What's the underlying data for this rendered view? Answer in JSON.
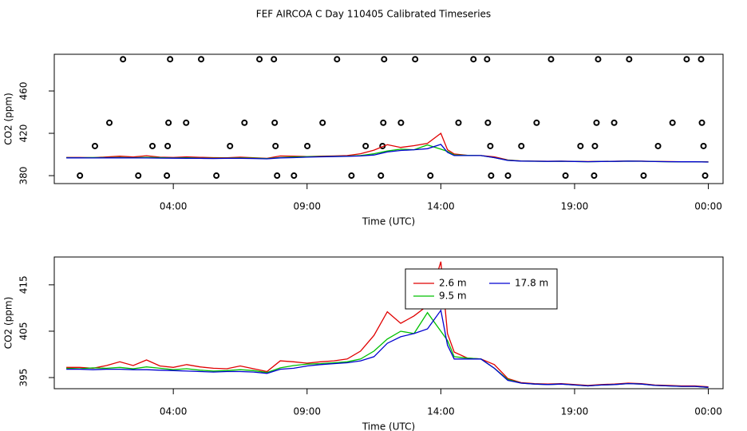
{
  "chart_data": [
    {
      "type": "line",
      "title": "FEF AIRCOA C  Day 110405  Calibrated Timeseries",
      "xlabel": "Time (UTC)",
      "ylabel": "CO2 (ppm)",
      "xlim": [
        -0.45,
        24.55
      ],
      "ylim": [
        372.5,
        494.7
      ],
      "xticks": [
        {
          "value": 4,
          "label": "04:00"
        },
        {
          "value": 9,
          "label": "09:00"
        },
        {
          "value": 14,
          "label": "14:00"
        },
        {
          "value": 19,
          "label": "19:00"
        },
        {
          "value": 24,
          "label": "00:00"
        }
      ],
      "yticks": [
        380,
        420,
        460
      ],
      "series": [
        {
          "color": "#000000",
          "mode": "points",
          "x": [
            2.12,
            3.88,
            5.04,
            7.22,
            7.76,
            10.12,
            11.88,
            13.04,
            15.22,
            15.73,
            18.12,
            19.88,
            21.04,
            23.19,
            23.73,
            1.61,
            3.82,
            4.48,
            6.66,
            7.79,
            9.58,
            11.85,
            12.51,
            14.66,
            15.76,
            17.58,
            19.82,
            20.48,
            22.66,
            23.76,
            1.07,
            3.22,
            3.79,
            6.12,
            7.82,
            9.01,
            11.19,
            11.82,
            15.85,
            17.01,
            19.22,
            19.76,
            22.12,
            23.82,
            0.51,
            2.69,
            3.76,
            5.61,
            7.88,
            8.51,
            10.66,
            11.76,
            13.61,
            15.88,
            16.51,
            18.66,
            19.73,
            21.58,
            23.88
          ],
          "values": [
            490,
            490,
            490,
            490,
            490,
            490,
            490,
            490,
            490,
            490,
            490,
            490,
            490,
            490,
            490,
            430,
            430,
            430,
            430,
            430,
            430,
            430,
            430,
            430,
            430,
            430,
            430,
            430,
            430,
            430,
            408,
            408,
            408,
            408,
            408,
            408,
            408,
            408,
            408,
            408,
            408,
            408,
            408,
            408,
            380,
            380,
            380,
            380,
            380,
            380,
            380,
            380,
            380,
            380,
            380,
            380,
            380,
            380,
            380
          ]
        },
        {
          "color": "#e00000",
          "mode": "line",
          "x": [
            0,
            0.5,
            1,
            1.5,
            2,
            2.5,
            3,
            3.5,
            4,
            4.5,
            5,
            5.5,
            6,
            6.5,
            7,
            7.5,
            8,
            8.5,
            9,
            9.5,
            10,
            10.5,
            11,
            11.5,
            12,
            12.5,
            13,
            13.5,
            14,
            14.25,
            14.5,
            15,
            15.5,
            16,
            16.5,
            17,
            17.5,
            18,
            18.5,
            19,
            19.5,
            20,
            20.5,
            21,
            21.5,
            22,
            22.5,
            23,
            23.5,
            24
          ],
          "values": [
            397.2,
            397.2,
            397.0,
            397.6,
            398.4,
            397.6,
            398.8,
            397.5,
            397.2,
            397.8,
            397.3,
            397.0,
            396.9,
            397.5,
            396.9,
            396.3,
            398.6,
            398.4,
            398.1,
            398.4,
            398.6,
            399.0,
            400.7,
            404.1,
            409.2,
            406.7,
            408.3,
            410.5,
            420.0,
            404.5,
            400.5,
            399.2,
            399.0,
            397.8,
            394.8,
            393.9,
            393.7,
            393.6,
            393.7,
            393.5,
            393.3,
            393.5,
            393.6,
            393.8,
            393.7,
            393.4,
            393.3,
            393.2,
            393.2,
            393.0
          ]
        },
        {
          "color": "#00c000",
          "mode": "line",
          "x": [
            0,
            0.5,
            1,
            1.5,
            2,
            2.5,
            3,
            3.5,
            4,
            4.5,
            5,
            5.5,
            6,
            6.5,
            7,
            7.5,
            8,
            8.5,
            9,
            9.5,
            10,
            10.5,
            11,
            11.5,
            12,
            12.5,
            13,
            13.5,
            14,
            14.25,
            14.5,
            15,
            15.5,
            16,
            16.5,
            17,
            17.5,
            18,
            18.5,
            19,
            19.5,
            20,
            20.5,
            21,
            21.5,
            22,
            22.5,
            23,
            23.5,
            24
          ],
          "values": [
            397.0,
            396.9,
            397.1,
            397.0,
            397.2,
            396.9,
            397.3,
            397.0,
            396.7,
            396.9,
            396.6,
            396.4,
            396.5,
            396.7,
            396.5,
            396.1,
            397.1,
            397.6,
            397.9,
            398.0,
            398.2,
            398.4,
            399.0,
            400.7,
            403.3,
            405.0,
            404.5,
            409.0,
            405.0,
            403.0,
            399.5,
            399.2,
            399.0,
            397.0,
            394.6,
            393.8,
            393.6,
            393.5,
            393.6,
            393.4,
            393.2,
            393.4,
            393.5,
            393.7,
            393.6,
            393.3,
            393.2,
            393.1,
            393.1,
            392.9
          ]
        },
        {
          "color": "#0000d0",
          "mode": "line",
          "x": [
            0,
            0.5,
            1,
            1.5,
            2,
            2.5,
            3,
            3.5,
            4,
            4.5,
            5,
            5.5,
            6,
            6.5,
            7,
            7.5,
            8,
            8.5,
            9,
            9.5,
            10,
            10.5,
            11,
            11.5,
            12,
            12.5,
            13,
            13.5,
            14,
            14.25,
            14.5,
            15,
            15.5,
            16,
            16.5,
            17,
            17.5,
            18,
            18.5,
            19,
            19.5,
            20,
            20.5,
            21,
            21.5,
            22,
            22.5,
            23,
            23.5,
            24
          ],
          "values": [
            396.8,
            396.8,
            396.7,
            396.8,
            396.8,
            396.7,
            396.7,
            396.6,
            396.5,
            396.4,
            396.3,
            396.2,
            396.3,
            396.3,
            396.2,
            395.9,
            396.8,
            397.0,
            397.5,
            397.8,
            398.0,
            398.2,
            398.6,
            399.5,
            402.4,
            403.8,
            404.5,
            405.5,
            409.5,
            402.0,
            399.0,
            399.0,
            399.0,
            397.0,
            394.4,
            393.8,
            393.6,
            393.5,
            393.6,
            393.4,
            393.2,
            393.4,
            393.5,
            393.7,
            393.6,
            393.3,
            393.2,
            393.1,
            393.1,
            392.9
          ]
        }
      ]
    },
    {
      "type": "line",
      "xlabel": "Time (UTC)",
      "ylabel": "CO2 (ppm)",
      "legend": "top",
      "xlim": [
        -0.45,
        24.55
      ],
      "ylim": [
        392.6,
        421.0
      ],
      "xticks": [
        {
          "value": 4,
          "label": "04:00"
        },
        {
          "value": 9,
          "label": "09:00"
        },
        {
          "value": 14,
          "label": "14:00"
        },
        {
          "value": 19,
          "label": "19:00"
        },
        {
          "value": 24,
          "label": "00:00"
        }
      ],
      "yticks": [
        395,
        405,
        415
      ],
      "series": [
        {
          "name": "2.6 m",
          "color": "#e00000",
          "mode": "line",
          "x": [
            0,
            0.5,
            1,
            1.5,
            2,
            2.5,
            3,
            3.5,
            4,
            4.5,
            5,
            5.5,
            6,
            6.5,
            7,
            7.5,
            8,
            8.5,
            9,
            9.5,
            10,
            10.5,
            11,
            11.5,
            12,
            12.5,
            13,
            13.5,
            14,
            14.25,
            14.5,
            15,
            15.5,
            16,
            16.5,
            17,
            17.5,
            18,
            18.5,
            19,
            19.5,
            20,
            20.5,
            21,
            21.5,
            22,
            22.5,
            23,
            23.5,
            24
          ],
          "values": [
            397.2,
            397.2,
            397.0,
            397.6,
            398.4,
            397.6,
            398.8,
            397.5,
            397.2,
            397.8,
            397.3,
            397.0,
            396.9,
            397.5,
            396.9,
            396.3,
            398.6,
            398.4,
            398.1,
            398.4,
            398.6,
            399.0,
            400.7,
            404.1,
            409.2,
            406.7,
            408.3,
            410.5,
            420.0,
            404.5,
            400.5,
            399.2,
            399.0,
            397.8,
            394.8,
            393.9,
            393.7,
            393.6,
            393.7,
            393.5,
            393.3,
            393.5,
            393.6,
            393.8,
            393.7,
            393.4,
            393.3,
            393.2,
            393.2,
            393.0
          ]
        },
        {
          "name": "9.5 m",
          "color": "#00c000",
          "mode": "line",
          "x": [
            0,
            0.5,
            1,
            1.5,
            2,
            2.5,
            3,
            3.5,
            4,
            4.5,
            5,
            5.5,
            6,
            6.5,
            7,
            7.5,
            8,
            8.5,
            9,
            9.5,
            10,
            10.5,
            11,
            11.5,
            12,
            12.5,
            13,
            13.5,
            14,
            14.25,
            14.5,
            15,
            15.5,
            16,
            16.5,
            17,
            17.5,
            18,
            18.5,
            19,
            19.5,
            20,
            20.5,
            21,
            21.5,
            22,
            22.5,
            23,
            23.5,
            24
          ],
          "values": [
            397.0,
            396.9,
            397.1,
            397.0,
            397.2,
            396.9,
            397.3,
            397.0,
            396.7,
            396.9,
            396.6,
            396.4,
            396.5,
            396.7,
            396.5,
            396.1,
            397.1,
            397.6,
            397.9,
            398.0,
            398.2,
            398.4,
            399.0,
            400.7,
            403.3,
            405.0,
            404.5,
            409.0,
            405.0,
            403.0,
            399.5,
            399.2,
            399.0,
            397.0,
            394.6,
            393.8,
            393.6,
            393.5,
            393.6,
            393.4,
            393.2,
            393.4,
            393.5,
            393.7,
            393.6,
            393.3,
            393.2,
            393.1,
            393.1,
            392.9
          ]
        },
        {
          "name": "17.8 m",
          "color": "#0000d0",
          "mode": "line",
          "x": [
            0,
            0.5,
            1,
            1.5,
            2,
            2.5,
            3,
            3.5,
            4,
            4.5,
            5,
            5.5,
            6,
            6.5,
            7,
            7.5,
            8,
            8.5,
            9,
            9.5,
            10,
            10.5,
            11,
            11.5,
            12,
            12.5,
            13,
            13.5,
            14,
            14.25,
            14.5,
            15,
            15.5,
            16,
            16.5,
            17,
            17.5,
            18,
            18.5,
            19,
            19.5,
            20,
            20.5,
            21,
            21.5,
            22,
            22.5,
            23,
            23.5,
            24
          ],
          "values": [
            396.8,
            396.8,
            396.7,
            396.8,
            396.8,
            396.7,
            396.7,
            396.6,
            396.5,
            396.4,
            396.3,
            396.2,
            396.3,
            396.3,
            396.2,
            395.9,
            396.8,
            397.0,
            397.5,
            397.8,
            398.0,
            398.2,
            398.6,
            399.5,
            402.4,
            403.8,
            404.5,
            405.5,
            409.5,
            402.0,
            399.0,
            399.0,
            399.0,
            397.0,
            394.4,
            393.8,
            393.6,
            393.5,
            393.6,
            393.4,
            393.2,
            393.4,
            393.5,
            393.7,
            393.6,
            393.3,
            393.2,
            393.1,
            393.1,
            392.9
          ]
        }
      ]
    }
  ]
}
